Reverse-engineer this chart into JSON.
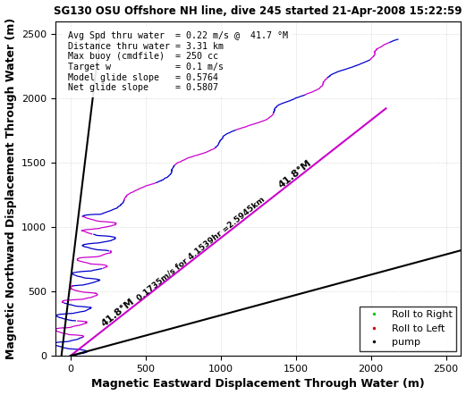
{
  "title": "SG130 OSU Offshore NH line, dive 245 started 21-Apr-2008 15:22:59",
  "xlabel": "Magnetic Eastward Displacement Through Water (m)",
  "ylabel": "Magnetic Northward Displacement Through Water (m)",
  "xlim": [
    -100,
    2600
  ],
  "ylim": [
    0,
    2600
  ],
  "xticks": [
    0,
    500,
    1000,
    1500,
    2000,
    2500
  ],
  "yticks": [
    0,
    500,
    1000,
    1500,
    2000,
    2500
  ],
  "annotation_text": "Avg Spd thru water  = 0.22 m/s @  41.7 °M\nDistance thru water = 3.31 km\nMax buoy (cmdfile)  = 250 cc\nTarget w            = 0.1 m/s\nModel glide slope   = 0.5764\nNet glide slope     = 0.5807",
  "diag_line_label1": "0.1735m/s for 4.1539hr =2.5945km",
  "background_color": "#ffffff",
  "grid_color": "#aaaaaa",
  "legend_items": [
    {
      "label": "Roll to Right",
      "color": "#00cc00",
      "marker": "."
    },
    {
      "label": "Roll to Left",
      "color": "#cc0000",
      "marker": "."
    },
    {
      "label": "pump",
      "color": "#000000",
      "marker": "."
    }
  ],
  "glider_line_color_right": "#0000cc",
  "glider_line_color_left": "#cc00cc",
  "net_line_color": "#cc00cc",
  "steep_line_color": "#000000",
  "pump_line_color": "#000000",
  "net_heading_deg": 41.8,
  "net_line_end_x": 2100,
  "net_line_end_y": 1923,
  "steep_line_x0": -60,
  "steep_line_y0": 0,
  "steep_line_x1": 200,
  "steep_line_y1": 2500,
  "pump_line_x0": 0,
  "pump_line_y0": 0,
  "pump_line_x1": 2600,
  "pump_line_y1": 820,
  "track_end_x": 2100,
  "track_end_y": 2460
}
